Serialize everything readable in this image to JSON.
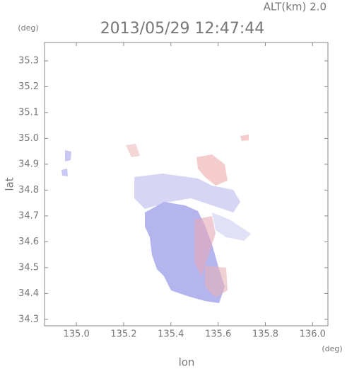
{
  "chart_data": {
    "type": "map",
    "title": "2013/05/29 12:47:44",
    "annotation": "ALT(km) 2.0",
    "x_label": "lon",
    "y_label": "lat",
    "x_unit": "(deg)",
    "y_unit": "(deg)",
    "xlim": [
      134.865,
      136.065
    ],
    "ylim": [
      34.275,
      35.371
    ],
    "xticks": [
      {
        "value": 135,
        "label": "135.0"
      },
      135.2,
      135.4,
      135.6,
      135.8,
      {
        "value": 136,
        "label": "136.0"
      }
    ],
    "yticks": [
      34.3,
      34.4,
      34.5,
      34.6,
      34.7,
      34.8,
      34.9,
      {
        "value": 35,
        "label": "35.0"
      },
      35.1,
      35.2,
      35.3
    ]
  }
}
